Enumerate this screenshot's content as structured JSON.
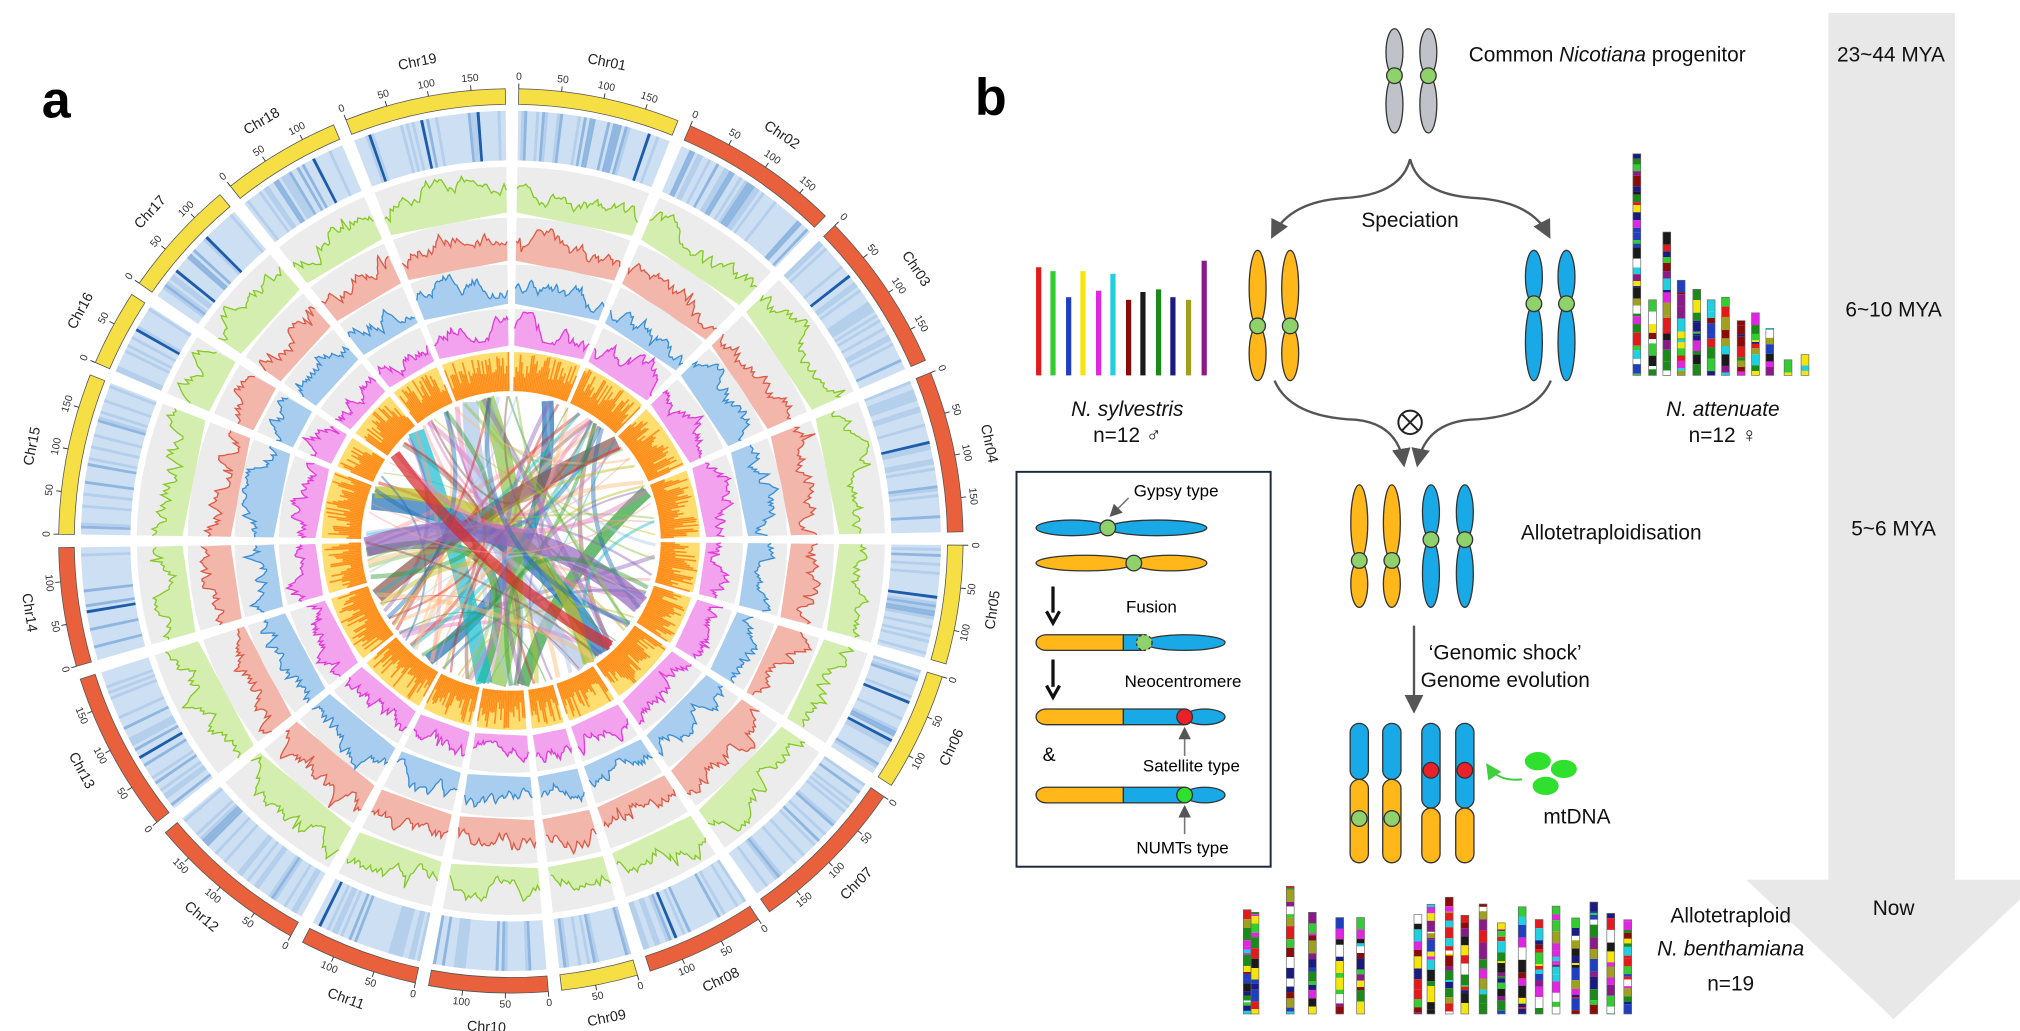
{
  "panel_a": {
    "label": "a",
    "chromosomes": [
      {
        "name": "Chr01",
        "color": "#f5df45",
        "ticks": [
          0,
          50,
          100,
          150
        ]
      },
      {
        "name": "Chr02",
        "color": "#e8603c",
        "ticks": [
          0,
          50,
          100,
          150
        ]
      },
      {
        "name": "Chr03",
        "color": "#e8603c",
        "ticks": [
          0,
          50,
          100,
          150
        ]
      },
      {
        "name": "Chr04",
        "color": "#e8603c",
        "ticks": [
          0,
          50,
          100,
          150
        ]
      },
      {
        "name": "Chr05",
        "color": "#f5df45",
        "ticks": [
          0,
          50,
          100
        ]
      },
      {
        "name": "Chr06",
        "color": "#f5df45",
        "ticks": [
          0,
          50,
          100
        ]
      },
      {
        "name": "Chr07",
        "color": "#e8603c",
        "ticks": [
          0,
          50,
          100,
          150
        ]
      },
      {
        "name": "Chr08",
        "color": "#e8603c",
        "ticks": [
          0,
          50,
          100
        ]
      },
      {
        "name": "Chr09",
        "color": "#f5df45",
        "ticks": [
          0,
          50
        ]
      },
      {
        "name": "Chr10",
        "color": "#e8603c",
        "ticks": [
          0,
          50,
          100
        ]
      },
      {
        "name": "Chr11",
        "color": "#e8603c",
        "ticks": [
          0,
          50,
          100
        ]
      },
      {
        "name": "Chr12",
        "color": "#e8603c",
        "ticks": [
          0,
          50,
          100,
          150
        ]
      },
      {
        "name": "Chr13",
        "color": "#e8603c",
        "ticks": [
          0,
          50,
          100,
          150
        ]
      },
      {
        "name": "Chr14",
        "color": "#e8603c",
        "ticks": [
          0,
          50,
          100
        ]
      },
      {
        "name": "Chr15",
        "color": "#f5df45",
        "ticks": [
          0,
          50,
          100,
          150
        ]
      },
      {
        "name": "Chr16",
        "color": "#f5df45",
        "ticks": [
          0,
          50
        ]
      },
      {
        "name": "Chr17",
        "color": "#f5df45",
        "ticks": [
          0,
          50,
          100
        ]
      },
      {
        "name": "Chr18",
        "color": "#f5df45",
        "ticks": [
          0,
          50,
          100
        ]
      },
      {
        "name": "Chr19",
        "color": "#f5df45",
        "ticks": [
          0,
          50,
          100,
          150
        ]
      }
    ]
  },
  "panel_b": {
    "label": "b",
    "progenitor": {
      "prefix": "Common ",
      "italic": "Nicotiana",
      "suffix": " progenitor"
    },
    "timeline": [
      "23~44 MYA",
      "6~10 MYA",
      "5~6 MYA",
      "Now"
    ],
    "speciation": "Speciation",
    "parent_left": {
      "name": "N. sylvestris",
      "n": "n=12 ♂"
    },
    "parent_right": {
      "name": "N. attenuate",
      "n": "n=12 ♀"
    },
    "allotetraploidisation": "Allotetraploidisation",
    "shock": [
      "‘Genomic shock’",
      "Genome evolution"
    ],
    "mtdna": "mtDNA",
    "result": {
      "line1": "Allotetraploid",
      "name": "N. benthamiana",
      "n": "n=19"
    },
    "box": {
      "gypsy": "Gypsy type",
      "fusion": "Fusion",
      "neocentromere": "Neocentromere",
      "and": "&",
      "satellite": "Satellite type",
      "numts": "NUMTs type"
    }
  }
}
